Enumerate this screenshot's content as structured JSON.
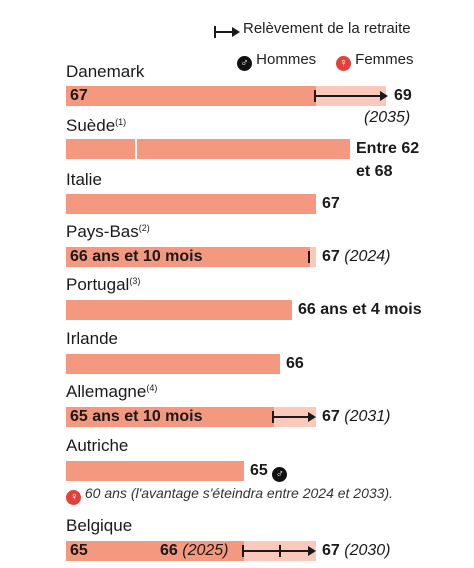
{
  "legend": {
    "raise": "Relèvement de la retraite",
    "men": "Hommes",
    "women": "Femmes",
    "men_icon": "male-symbol-icon",
    "women_icon": "female-symbol-icon",
    "colors": {
      "bar": "#f59880",
      "raise_bar": "#fbc9bb",
      "female_symbol": "#e0413a"
    }
  },
  "chart_data": {
    "type": "bar",
    "orientation": "horizontal",
    "x_unit": "years",
    "categories": [
      "Danemark",
      "Suède",
      "Italie",
      "Pays-Bas",
      "Portugal",
      "Irlande",
      "Allemagne",
      "Autriche",
      "Belgique"
    ],
    "rows": [
      {
        "country": "Danemark",
        "note_mark": "",
        "value": 67,
        "bar_label": "67",
        "raised_to": 69,
        "end_label": "69",
        "end_year": "(2035)"
      },
      {
        "country": "Suède",
        "note_mark": "(1)",
        "range": [
          62,
          68
        ],
        "end_label_1": "Entre 62",
        "end_label_2": "et 68"
      },
      {
        "country": "Italie",
        "note_mark": "",
        "value": 67,
        "end_label": "67"
      },
      {
        "country": "Pays-Bas",
        "note_mark": "(2)",
        "value": 66.83,
        "bar_label": "66 ans et 10 mois",
        "raised_to": 67,
        "end_label": "67",
        "end_year": "(2024)"
      },
      {
        "country": "Portugal",
        "note_mark": "(3)",
        "value": 66.33,
        "end_label": "66 ans et 4 mois"
      },
      {
        "country": "Irlande",
        "note_mark": "",
        "value": 66,
        "end_label": "66"
      },
      {
        "country": "Allemagne",
        "note_mark": "(4)",
        "value": 65.83,
        "bar_label": "65 ans et 10 mois",
        "raised_to": 67,
        "end_label": "67",
        "end_year": "(2031)"
      },
      {
        "country": "Autriche",
        "note_mark": "",
        "value": 65,
        "end_label": "65",
        "symbol": "male-symbol-icon",
        "women_value": 60,
        "women_note": "60 ans (l'avantage s'éteindra entre 2024 et 2033)."
      },
      {
        "country": "Belgique",
        "note_mark": "",
        "value": 65,
        "bar_label": "65",
        "steps": [
          66,
          67
        ],
        "step_label": "66",
        "step_year": "(2025)",
        "raised_to": 67,
        "end_label": "67",
        "end_year": "(2030)"
      }
    ]
  }
}
